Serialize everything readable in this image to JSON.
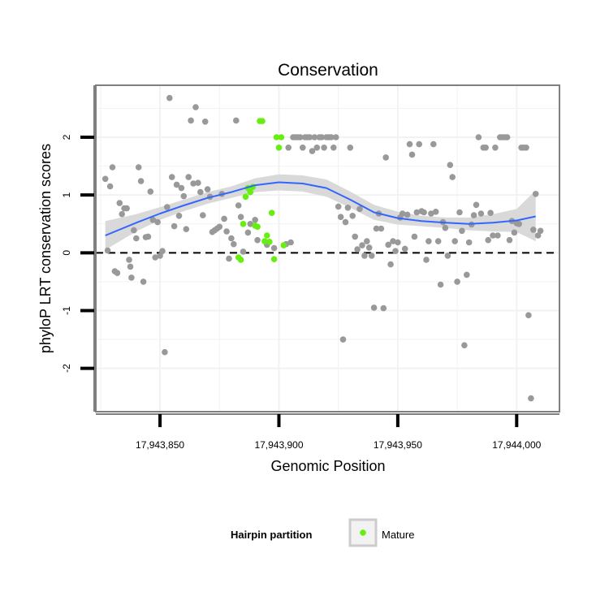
{
  "chart_data": {
    "type": "scatter",
    "title": "Conservation",
    "xlabel": "Genomic Position",
    "ylabel": "phyloP LRT conservation scores",
    "xlim": [
      17943823,
      17944018
    ],
    "ylim": [
      -2.75,
      2.9
    ],
    "x_ticks": [
      17943850,
      17943900,
      17943950,
      17944000
    ],
    "x_tick_labels": [
      "17,943,850",
      "17,943,900",
      "17,943,950",
      "17,944,000"
    ],
    "y_ticks": [
      -2,
      -1,
      0,
      1,
      2
    ],
    "y_tick_labels": [
      "-2",
      "-1",
      "0",
      "1",
      "2"
    ],
    "reference_line": {
      "y": 0,
      "style": "dashed"
    },
    "grid": true,
    "colors": {
      "other": "#999999",
      "mature": "#66ee11",
      "smooth": "#3366ff",
      "ribbon": "#d9d9d9",
      "panel_border": "#7f7f7f",
      "grid": "#f2f2f2"
    },
    "legend": {
      "title": "Hairpin partition",
      "entries": [
        {
          "label": "Mature",
          "color": "#66ee11"
        }
      ],
      "position": "bottom"
    },
    "series": [
      {
        "name": "Other",
        "color": "#999999",
        "points": [
          [
            17943827,
            1.28
          ],
          [
            17943828,
            0.04
          ],
          [
            17943829,
            1.15
          ],
          [
            17943830,
            1.48
          ],
          [
            17943831,
            -0.32
          ],
          [
            17943832,
            -0.35
          ],
          [
            17943833,
            0.86
          ],
          [
            17943834,
            0.67
          ],
          [
            17943835,
            0.77
          ],
          [
            17943836,
            0.77
          ],
          [
            17943837,
            -0.12
          ],
          [
            17943837.5,
            -0.24
          ],
          [
            17943838,
            -0.43
          ],
          [
            17943839,
            0.39
          ],
          [
            17943840,
            0.25
          ],
          [
            17943841,
            1.48
          ],
          [
            17943842,
            1.24
          ],
          [
            17943843,
            -0.5
          ],
          [
            17943844,
            0.27
          ],
          [
            17943845,
            0.28
          ],
          [
            17943846,
            1.06
          ],
          [
            17943847,
            0.57
          ],
          [
            17943848,
            -0.08
          ],
          [
            17943849,
            0.53
          ],
          [
            17943850,
            -0.05
          ],
          [
            17943851,
            0.03
          ],
          [
            17943852,
            -1.72
          ],
          [
            17943853,
            0.79
          ],
          [
            17943854,
            2.68
          ],
          [
            17943855,
            1.31
          ],
          [
            17943856,
            0.46
          ],
          [
            17943857,
            1.18
          ],
          [
            17943858,
            0.64
          ],
          [
            17943859,
            1.12
          ],
          [
            17943860,
            0.98
          ],
          [
            17943861,
            0.41
          ],
          [
            17943862,
            1.31
          ],
          [
            17943863,
            2.29
          ],
          [
            17943864,
            1.2
          ],
          [
            17943865,
            2.52
          ],
          [
            17943866,
            1.21
          ],
          [
            17943867,
            1.05
          ],
          [
            17943868,
            0.65
          ],
          [
            17943869,
            2.27
          ],
          [
            17943870,
            1.1
          ],
          [
            17943871,
            0.97
          ],
          [
            17943872,
            0.36
          ],
          [
            17943873,
            0.39
          ],
          [
            17943874,
            0.42
          ],
          [
            17943875,
            0.45
          ],
          [
            17943876,
            1.02
          ],
          [
            17943877,
            0.59
          ],
          [
            17943878,
            0.37
          ],
          [
            17943879,
            -0.1
          ],
          [
            17943880,
            0.25
          ],
          [
            17943881,
            0.15
          ],
          [
            17943882,
            2.29
          ],
          [
            17943883,
            0.82
          ],
          [
            17943884,
            0.62
          ],
          [
            17943885,
            0.02
          ],
          [
            17943887,
            0.35
          ],
          [
            17943888,
            0.5
          ],
          [
            17943890,
            0.57
          ],
          [
            17943891,
            0.22
          ],
          [
            17943895,
            0.14
          ],
          [
            17943898,
            0.08
          ],
          [
            17943903,
            0.15
          ],
          [
            17943904,
            1.82
          ],
          [
            17943905,
            0.18
          ],
          [
            17943906,
            2.0
          ],
          [
            17943907,
            2.0
          ],
          [
            17943908,
            2.0
          ],
          [
            17943909,
            2.0
          ],
          [
            17943910,
            1.82
          ],
          [
            17943911,
            2.0
          ],
          [
            17943912,
            2.0
          ],
          [
            17943913,
            2.0
          ],
          [
            17943914,
            1.76
          ],
          [
            17943915,
            2.0
          ],
          [
            17943916,
            1.82
          ],
          [
            17943917,
            2.0
          ],
          [
            17943918,
            2.0
          ],
          [
            17943919,
            1.82
          ],
          [
            17943920,
            2.0
          ],
          [
            17943921,
            2.0
          ],
          [
            17943922,
            2.0
          ],
          [
            17943923,
            1.82
          ],
          [
            17943924,
            2.0
          ],
          [
            17943925,
            0.8
          ],
          [
            17943926,
            0.62
          ],
          [
            17943927,
            -1.5
          ],
          [
            17943928,
            0.53
          ],
          [
            17943929,
            0.78
          ],
          [
            17943930,
            1.82
          ],
          [
            17943931,
            0.64
          ],
          [
            17943932,
            0.28
          ],
          [
            17943933,
            0.06
          ],
          [
            17943934,
            0.76
          ],
          [
            17943935,
            0.13
          ],
          [
            17943936,
            -0.05
          ],
          [
            17943937,
            0.2
          ],
          [
            17943938,
            0.09
          ],
          [
            17943939,
            -0.05
          ],
          [
            17943940,
            -0.95
          ],
          [
            17943941,
            0.42
          ],
          [
            17943942,
            0.68
          ],
          [
            17943943,
            0.42
          ],
          [
            17943944,
            -0.96
          ],
          [
            17943945,
            1.65
          ],
          [
            17943946,
            0.14
          ],
          [
            17943947,
            -0.2
          ],
          [
            17943948,
            0.2
          ],
          [
            17943949,
            0.03
          ],
          [
            17943950,
            0.18
          ],
          [
            17943951,
            0.61
          ],
          [
            17943952,
            0.68
          ],
          [
            17943953,
            0.07
          ],
          [
            17943954,
            0.66
          ],
          [
            17943955,
            1.88
          ],
          [
            17943956,
            1.7
          ],
          [
            17943957,
            0.28
          ],
          [
            17943958,
            0.7
          ],
          [
            17943959,
            1.88
          ],
          [
            17943960,
            0.72
          ],
          [
            17943961,
            0.7
          ],
          [
            17943962,
            -0.12
          ],
          [
            17943963,
            0.2
          ],
          [
            17943964,
            0.68
          ],
          [
            17943965,
            1.88
          ],
          [
            17943966,
            0.71
          ],
          [
            17943967,
            0.2
          ],
          [
            17943968,
            -0.55
          ],
          [
            17943969,
            0.53
          ],
          [
            17943970,
            0.43
          ],
          [
            17943971,
            -0.05
          ],
          [
            17943972,
            1.52
          ],
          [
            17943973,
            1.31
          ],
          [
            17943974,
            0.2
          ],
          [
            17943975,
            -0.5
          ],
          [
            17943976,
            0.7
          ],
          [
            17943977,
            0.38
          ],
          [
            17943978,
            -1.6
          ],
          [
            17943979,
            -0.38
          ],
          [
            17943980,
            0.18
          ],
          [
            17943981,
            0.49
          ],
          [
            17943982,
            0.65
          ],
          [
            17943983,
            0.83
          ],
          [
            17943984,
            2.0
          ],
          [
            17943985,
            0.68
          ],
          [
            17943986,
            1.82
          ],
          [
            17943987,
            1.82
          ],
          [
            17943988,
            0.22
          ],
          [
            17943989,
            0.69
          ],
          [
            17943990,
            0.3
          ],
          [
            17943991,
            1.82
          ],
          [
            17943992,
            0.3
          ],
          [
            17943993,
            2.0
          ],
          [
            17943994,
            2.0
          ],
          [
            17943995,
            2.0
          ],
          [
            17943996,
            2.0
          ],
          [
            17943997,
            0.22
          ],
          [
            17943998,
            0.55
          ],
          [
            17943999,
            0.35
          ],
          [
            17944000,
            0.51
          ],
          [
            17944001,
            0.5
          ],
          [
            17944002,
            1.82
          ],
          [
            17944003,
            1.82
          ],
          [
            17944004,
            1.82
          ],
          [
            17944005,
            -1.08
          ],
          [
            17944006,
            -2.52
          ],
          [
            17944007,
            0.4
          ],
          [
            17944008,
            1.02
          ],
          [
            17944009,
            0.3
          ],
          [
            17944010,
            0.38
          ]
        ]
      },
      {
        "name": "Mature",
        "color": "#66ee11",
        "points": [
          [
            17943883,
            -0.08
          ],
          [
            17943884,
            -0.12
          ],
          [
            17943885,
            0.5
          ],
          [
            17943886,
            0.97
          ],
          [
            17943887,
            1.12
          ],
          [
            17943888,
            1.05
          ],
          [
            17943889,
            1.14
          ],
          [
            17943890,
            0.47
          ],
          [
            17943891,
            0.45
          ],
          [
            17943892,
            2.28
          ],
          [
            17943893,
            2.28
          ],
          [
            17943894,
            0.2
          ],
          [
            17943895,
            0.3
          ],
          [
            17943896,
            0.19
          ],
          [
            17943897,
            0.69
          ],
          [
            17943898,
            -0.11
          ],
          [
            17943899,
            2.0
          ],
          [
            17943900,
            1.82
          ],
          [
            17943901,
            2.0
          ],
          [
            17943902,
            0.13
          ]
        ]
      }
    ],
    "smooth": {
      "x": [
        17943827,
        17943840,
        17943850,
        17943860,
        17943870,
        17943880,
        17943890,
        17943900,
        17943910,
        17943920,
        17943930,
        17943940,
        17943950,
        17943960,
        17943970,
        17943980,
        17943990,
        17944000,
        17944008
      ],
      "y": [
        0.3,
        0.52,
        0.68,
        0.82,
        0.95,
        1.05,
        1.17,
        1.22,
        1.2,
        1.12,
        0.92,
        0.7,
        0.6,
        0.55,
        0.52,
        0.5,
        0.52,
        0.56,
        0.63
      ],
      "lower": [
        0.05,
        0.37,
        0.57,
        0.72,
        0.85,
        0.95,
        1.05,
        1.08,
        1.06,
        0.97,
        0.78,
        0.57,
        0.49,
        0.46,
        0.43,
        0.39,
        0.37,
        0.36,
        0.2
      ],
      "upper": [
        0.55,
        0.67,
        0.79,
        0.92,
        1.05,
        1.15,
        1.29,
        1.36,
        1.34,
        1.27,
        1.06,
        0.83,
        0.71,
        0.64,
        0.61,
        0.61,
        0.67,
        0.76,
        1.08
      ]
    }
  }
}
